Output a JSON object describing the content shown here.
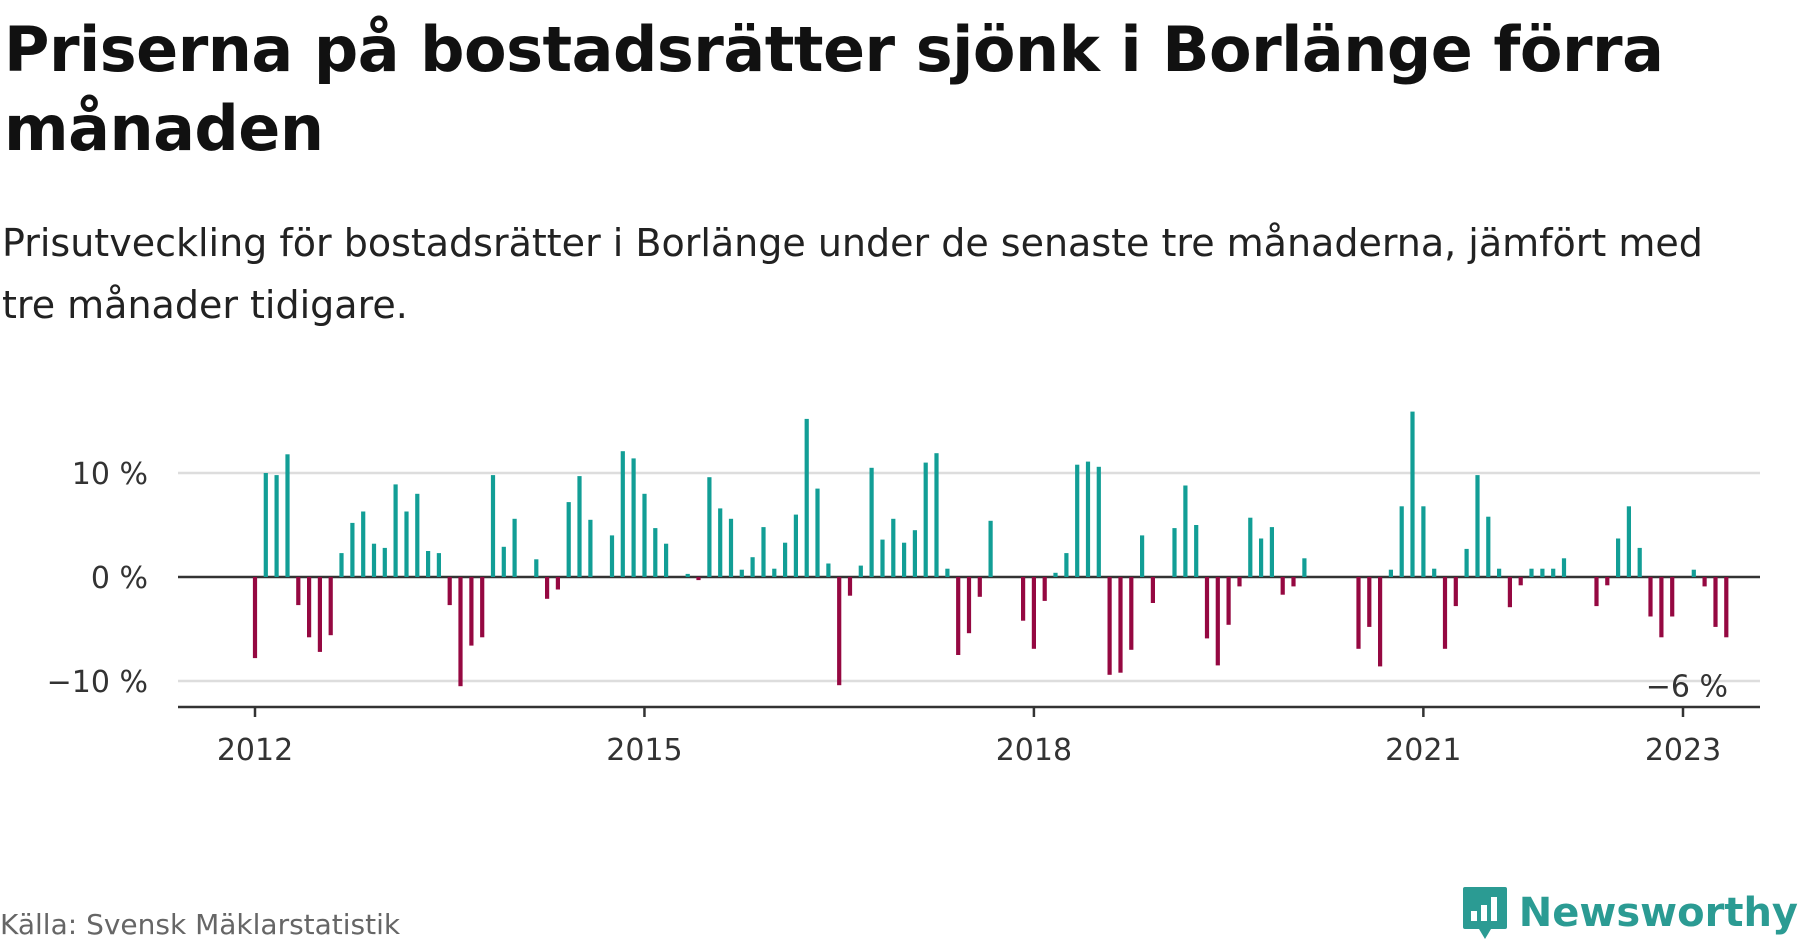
{
  "title": "Priserna på bostadsrätter sjönk i Borlänge förra månaden",
  "subtitle": "Prisutveckling för bostadsrätter i Borlänge under de senaste tre månaderna, jämfört med tre månader tidigare.",
  "source": "Källa: Svensk Mäklarstatistik",
  "brand": "Newsworthy",
  "colors": {
    "positive": "#129e96",
    "negative": "#950841",
    "brand": "#2b9b93",
    "grid": "#dddddd",
    "axis": "#333333"
  },
  "chart_data": {
    "type": "bar",
    "x_start": "2012-01",
    "x_end": "2023-01",
    "ylim": [
      -12,
      17
    ],
    "y_ticks": [
      {
        "value": 10,
        "label": "10 %"
      },
      {
        "value": 0,
        "label": "0 %"
      },
      {
        "value": -10,
        "label": "−10 %"
      }
    ],
    "x_ticks": [
      {
        "x": "2012-01",
        "label": "2012"
      },
      {
        "x": "2015-01",
        "label": "2015"
      },
      {
        "x": "2018-01",
        "label": "2018"
      },
      {
        "x": "2021-01",
        "label": "2021"
      },
      {
        "x": "2023-01",
        "label": "2023"
      }
    ],
    "last_label": "−6 %",
    "grid": true,
    "values": [
      -7.8,
      10,
      9.8,
      11.8,
      -2.7,
      -5.8,
      -7.2,
      -5.6,
      2.3,
      5.2,
      6.3,
      3.2,
      2.8,
      8.9,
      6.3,
      8.0,
      2.5,
      2.3,
      -2.7,
      -10.5,
      -6.6,
      -5.8,
      9.8,
      2.9,
      5.6,
      0,
      1.7,
      -2.1,
      -1.2,
      7.2,
      9.7,
      5.5,
      0,
      4.0,
      12.1,
      11.4,
      8.0,
      4.7,
      3.2,
      0,
      0.3,
      -0.3,
      9.6,
      6.6,
      5.6,
      0.7,
      1.9,
      4.8,
      0.8,
      3.3,
      6.0,
      15.2,
      8.5,
      1.3,
      -10.4,
      -1.8,
      1.1,
      10.5,
      3.6,
      5.6,
      3.3,
      4.5,
      11.0,
      11.9,
      0.8,
      -7.5,
      -5.4,
      -1.9,
      5.4,
      0,
      0,
      -4.2,
      -6.9,
      -2.3,
      0.4,
      2.3,
      10.8,
      11.1,
      10.6,
      -9.4,
      -9.2,
      -7.0,
      4.0,
      -2.5,
      0,
      4.7,
      8.8,
      5.0,
      -5.9,
      -8.5,
      -4.6,
      -0.9,
      5.7,
      3.7,
      4.8,
      -1.7,
      -0.9,
      1.8,
      0,
      0,
      0,
      0,
      -6.9,
      -4.8,
      -8.6,
      0.7,
      6.8,
      15.9,
      6.8,
      0.8,
      -6.9,
      -2.8,
      2.7,
      9.8,
      5.8,
      0.8,
      -2.9,
      -0.8,
      0.8,
      0.8,
      0.8,
      1.8,
      0,
      0,
      -2.8,
      -0.8,
      3.7,
      6.8,
      2.8,
      -3.8,
      -5.8,
      -3.8,
      0,
      0.7,
      -0.9,
      -4.8,
      -5.8
    ]
  }
}
